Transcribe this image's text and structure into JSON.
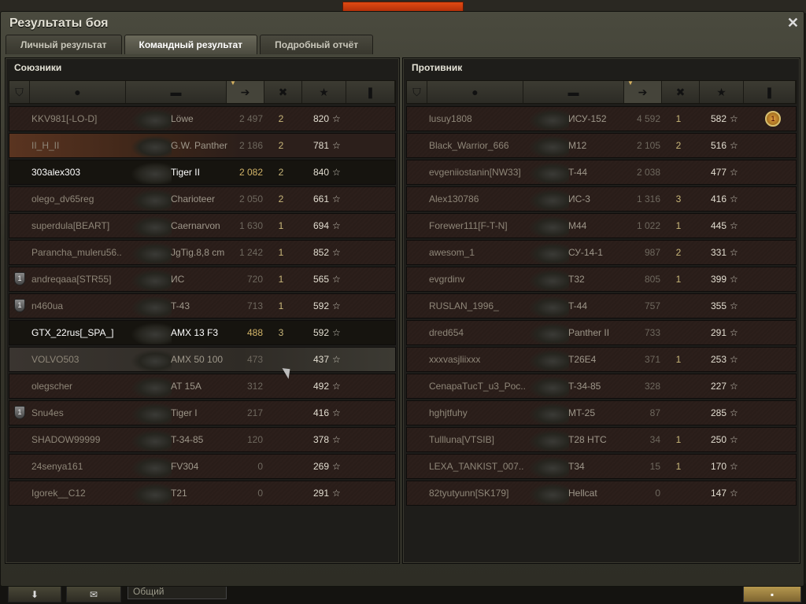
{
  "window": {
    "title": "Результаты боя",
    "close": "✕"
  },
  "tabs": [
    {
      "label": "Личный результат"
    },
    {
      "label": "Командный результат",
      "active": true
    },
    {
      "label": "Подробный отчёт"
    }
  ],
  "columns": {
    "icons": [
      "squad-icon",
      "player-icon",
      "tank-icon",
      "damage-icon",
      "frags-icon",
      "xp-icon",
      "medal-icon"
    ],
    "sorted_by": "damage-icon"
  },
  "allies": {
    "label": "Союзники",
    "rows": [
      {
        "name": "KKV981[-LO-D]",
        "tank": "Löwe",
        "damage": "2 497",
        "frags": "2",
        "xp": "820"
      },
      {
        "name": "II_H_II",
        "tank": "G.W. Panther",
        "damage": "2 186",
        "frags": "2",
        "xp": "781",
        "style": "squad"
      },
      {
        "name": "303alex303",
        "tank": "Tiger II",
        "damage": "2 082",
        "frags": "2",
        "xp": "840",
        "style": "self"
      },
      {
        "name": "olego_dv65reg",
        "tank": "Charioteer",
        "damage": "2 050",
        "frags": "2",
        "xp": "661"
      },
      {
        "name": "superdula[BEART]",
        "tank": "Caernarvon",
        "damage": "1 630",
        "frags": "1",
        "xp": "694"
      },
      {
        "name": "Parancha_muleru56..",
        "tank": "JgTig.8,8 cm",
        "damage": "1 242",
        "frags": "1",
        "xp": "852"
      },
      {
        "name": "andreqaaa[STR55]",
        "tank": "ИС",
        "damage": "720",
        "frags": "1",
        "xp": "565",
        "badge": "1"
      },
      {
        "name": "n460ua",
        "tank": "T-43",
        "damage": "713",
        "frags": "1",
        "xp": "592",
        "badge": "1"
      },
      {
        "name": "GTX_22rus[_SPA_]",
        "tank": "AMX 13 F3",
        "damage": "488",
        "frags": "3",
        "xp": "592",
        "style": "self"
      },
      {
        "name": "VOLVO503",
        "tank": "AMX 50 100",
        "damage": "473",
        "frags": "",
        "xp": "437",
        "style": "hover"
      },
      {
        "name": "olegscher",
        "tank": "AT 15A",
        "damage": "312",
        "frags": "",
        "xp": "492"
      },
      {
        "name": "Snu4es",
        "tank": "Tiger I",
        "damage": "217",
        "frags": "",
        "xp": "416",
        "badge": "1"
      },
      {
        "name": "SHADOW99999",
        "tank": "T-34-85",
        "damage": "120",
        "frags": "",
        "xp": "378"
      },
      {
        "name": "24senya161",
        "tank": "FV304",
        "damage": "0",
        "frags": "",
        "xp": "269"
      },
      {
        "name": "Igorek__C12",
        "tank": "T21",
        "damage": "0",
        "frags": "",
        "xp": "291"
      }
    ]
  },
  "enemies": {
    "label": "Противник",
    "rows": [
      {
        "name": "lusuy1808",
        "tank": "ИСУ-152",
        "damage": "4 592",
        "frags": "1",
        "xp": "582",
        "medal": "1"
      },
      {
        "name": "Black_Warrior_666",
        "tank": "M12",
        "damage": "2 105",
        "frags": "2",
        "xp": "516"
      },
      {
        "name": "evgeniiostanin[NW33]",
        "tank": "T-44",
        "damage": "2 038",
        "frags": "",
        "xp": "477"
      },
      {
        "name": "Alex130786",
        "tank": "ИС-3",
        "damage": "1 316",
        "frags": "3",
        "xp": "416"
      },
      {
        "name": "Forewer111[F-T-N]",
        "tank": "M44",
        "damage": "1 022",
        "frags": "1",
        "xp": "445"
      },
      {
        "name": "awesom_1",
        "tank": "СУ-14-1",
        "damage": "987",
        "frags": "2",
        "xp": "331"
      },
      {
        "name": "evgrdinv",
        "tank": "T32",
        "damage": "805",
        "frags": "1",
        "xp": "399"
      },
      {
        "name": "RUSLAN_1996_",
        "tank": "T-44",
        "damage": "757",
        "frags": "",
        "xp": "355"
      },
      {
        "name": "dred654",
        "tank": "Panther II",
        "damage": "733",
        "frags": "",
        "xp": "291"
      },
      {
        "name": "xxxvasjliixxx",
        "tank": "T26E4",
        "damage": "371",
        "frags": "1",
        "xp": "253"
      },
      {
        "name": "CenapaTucT_u3_Poc..",
        "tank": "T-34-85",
        "damage": "328",
        "frags": "",
        "xp": "227"
      },
      {
        "name": "hghjtfuhy",
        "tank": "MT-25",
        "damage": "87",
        "frags": "",
        "xp": "285"
      },
      {
        "name": "Tullluna[VTSIB]",
        "tank": "T28 HTC",
        "damage": "34",
        "frags": "1",
        "xp": "250"
      },
      {
        "name": "LEXA_TANKIST_007..",
        "tank": "T34",
        "damage": "15",
        "frags": "1",
        "xp": "170"
      },
      {
        "name": "82tyutyunn[SK179]",
        "tank": "Hellcat",
        "damage": "0",
        "frags": "",
        "xp": "147"
      }
    ]
  },
  "bottom": {
    "chat_channel": "Общий"
  },
  "colors": {
    "accent": "#d2b468",
    "frags": "#c9b77a",
    "highlight_row": "#16140f"
  }
}
